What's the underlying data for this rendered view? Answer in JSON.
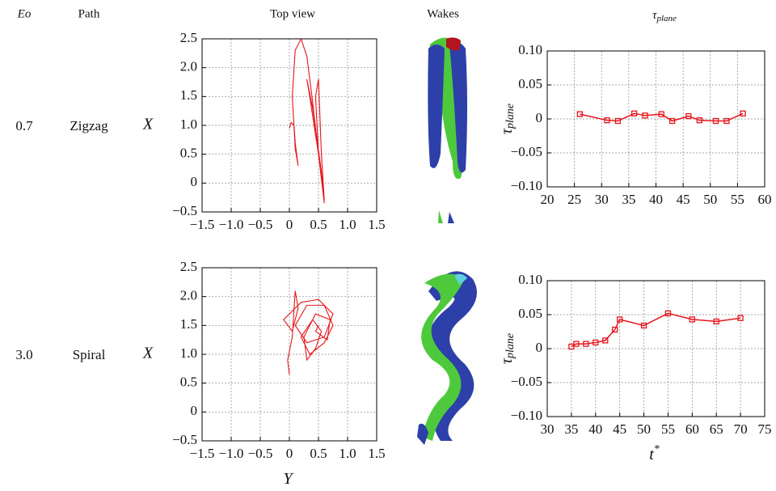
{
  "header": {
    "eo": "Eo",
    "path": "Path",
    "top_view": "Top view",
    "wakes": "Wakes",
    "tau": "τ",
    "tau_sub": "plane"
  },
  "rows": [
    {
      "eo": "0.7",
      "path": "Zigzag"
    },
    {
      "eo": "3.0",
      "path": "Spiral"
    }
  ],
  "chart_data": [
    {
      "type": "line",
      "ylabel": "X",
      "x": [
        0,
        0.03,
        0.08,
        0.1,
        0.15,
        0.1,
        0.05,
        0.1,
        0.2,
        0.3,
        0.4,
        0.5,
        0.55,
        0.5,
        0.35,
        0.3,
        0.4,
        0.55,
        0.6,
        0.5,
        0.45,
        0.5,
        0.55,
        0.6
      ],
      "series": [
        {
          "color": "#e8141b",
          "values": [
            0.95,
            1.05,
            1.0,
            0.7,
            0.3,
            0.6,
            1.5,
            2.3,
            2.5,
            2.2,
            1.4,
            0.5,
            0.1,
            0.5,
            1.5,
            1.8,
            1.3,
            0.2,
            -0.35,
            0.5,
            1.5,
            1.8,
            0.5,
            -0.3
          ]
        }
      ],
      "xlim": [
        -1.5,
        1.5
      ],
      "ylim": [
        -0.5,
        2.5
      ],
      "xticks": [
        {
          "value": -1.5,
          "label": "−1.5"
        },
        {
          "value": -1.0,
          "label": "−1.0"
        },
        {
          "value": -0.5,
          "label": "−0.5"
        },
        0,
        0.5,
        {
          "value": 1.0,
          "label": "1.0"
        },
        1.5
      ],
      "yticks": [
        {
          "value": -0.5,
          "label": "−0.5"
        },
        0,
        0.5,
        {
          "value": 1.0,
          "label": "1.0"
        },
        1.5,
        {
          "value": 2.0,
          "label": "2.0"
        },
        2.5
      ],
      "grid": true
    },
    {
      "type": "line",
      "ylabel": "τ",
      "ylabel_sub": "plane",
      "x": [
        26,
        31,
        33,
        36,
        38,
        41,
        43,
        46,
        48,
        51,
        53,
        56
      ],
      "series": [
        {
          "color": "#e8141b",
          "values": [
            0.007,
            -0.002,
            -0.003,
            0.008,
            0.005,
            0.007,
            -0.003,
            0.004,
            -0.002,
            -0.003,
            -0.003,
            0.008
          ]
        }
      ],
      "markers": true,
      "xlim": [
        20,
        60
      ],
      "ylim": [
        -0.1,
        0.1
      ],
      "xticks": [
        20,
        25,
        30,
        35,
        40,
        45,
        50,
        55,
        60
      ],
      "yticks": [
        {
          "value": -0.1,
          "label": "−0.10"
        },
        {
          "value": -0.05,
          "label": "−0.05"
        },
        0,
        {
          "value": 0.05,
          "label": "0.05"
        },
        {
          "value": 0.1,
          "label": "0.10"
        }
      ],
      "grid": true
    },
    {
      "type": "line",
      "ylabel": "X",
      "xlabel": "Y",
      "x": [
        0,
        -0.03,
        0.05,
        0.1,
        0.15,
        0.05,
        -0.1,
        0.2,
        0.5,
        0.75,
        0.6,
        0.3,
        0.1,
        0.3,
        0.6,
        0.75,
        0.6,
        0.35,
        0.2,
        0.4,
        0.55,
        0.45,
        0.3,
        0.25,
        0.45,
        0.7,
        0.65,
        0.45,
        0.5
      ],
      "series": [
        {
          "color": "#e8141b",
          "values": [
            0.65,
            0.9,
            1.3,
            2.1,
            1.8,
            1.4,
            1.6,
            1.9,
            1.95,
            1.7,
            1.3,
            1.2,
            1.5,
            1.85,
            1.85,
            1.5,
            1.2,
            1.0,
            1.3,
            1.6,
            1.4,
            1.1,
            0.9,
            1.3,
            1.7,
            1.6,
            1.25,
            1.4,
            1.5
          ]
        }
      ],
      "xlim": [
        -1.5,
        1.5
      ],
      "ylim": [
        -0.5,
        2.5
      ],
      "xticks": [
        {
          "value": -1.5,
          "label": "−1.5"
        },
        {
          "value": -1.0,
          "label": "−1.0"
        },
        {
          "value": -0.5,
          "label": "−0.5"
        },
        0,
        0.5,
        {
          "value": 1.0,
          "label": "1.0"
        },
        1.5
      ],
      "yticks": [
        {
          "value": -0.5,
          "label": "−0.5"
        },
        0,
        0.5,
        {
          "value": 1.0,
          "label": "1.0"
        },
        1.5,
        {
          "value": 2.0,
          "label": "2.0"
        },
        2.5
      ],
      "grid": true
    },
    {
      "type": "line",
      "ylabel": "τ",
      "ylabel_sub": "plane",
      "xlabel": "t",
      "xlabel_sup": "*",
      "x": [
        35,
        36,
        38,
        40,
        42,
        44,
        45,
        50,
        55,
        60,
        65,
        70
      ],
      "series": [
        {
          "color": "#e8141b",
          "values": [
            0.003,
            0.007,
            0.007,
            0.009,
            0.012,
            0.028,
            0.043,
            0.034,
            0.052,
            0.043,
            0.04,
            0.045
          ]
        }
      ],
      "markers": true,
      "xlim": [
        30,
        75
      ],
      "ylim": [
        -0.1,
        0.1
      ],
      "xticks": [
        30,
        35,
        40,
        45,
        50,
        55,
        60,
        65,
        70,
        75
      ],
      "yticks": [
        {
          "value": -0.1,
          "label": "−0.10"
        },
        {
          "value": -0.05,
          "label": "−0.05"
        },
        0,
        {
          "value": 0.05,
          "label": "0.05"
        },
        {
          "value": 0.1,
          "label": "0.10"
        }
      ],
      "grid": true
    }
  ]
}
